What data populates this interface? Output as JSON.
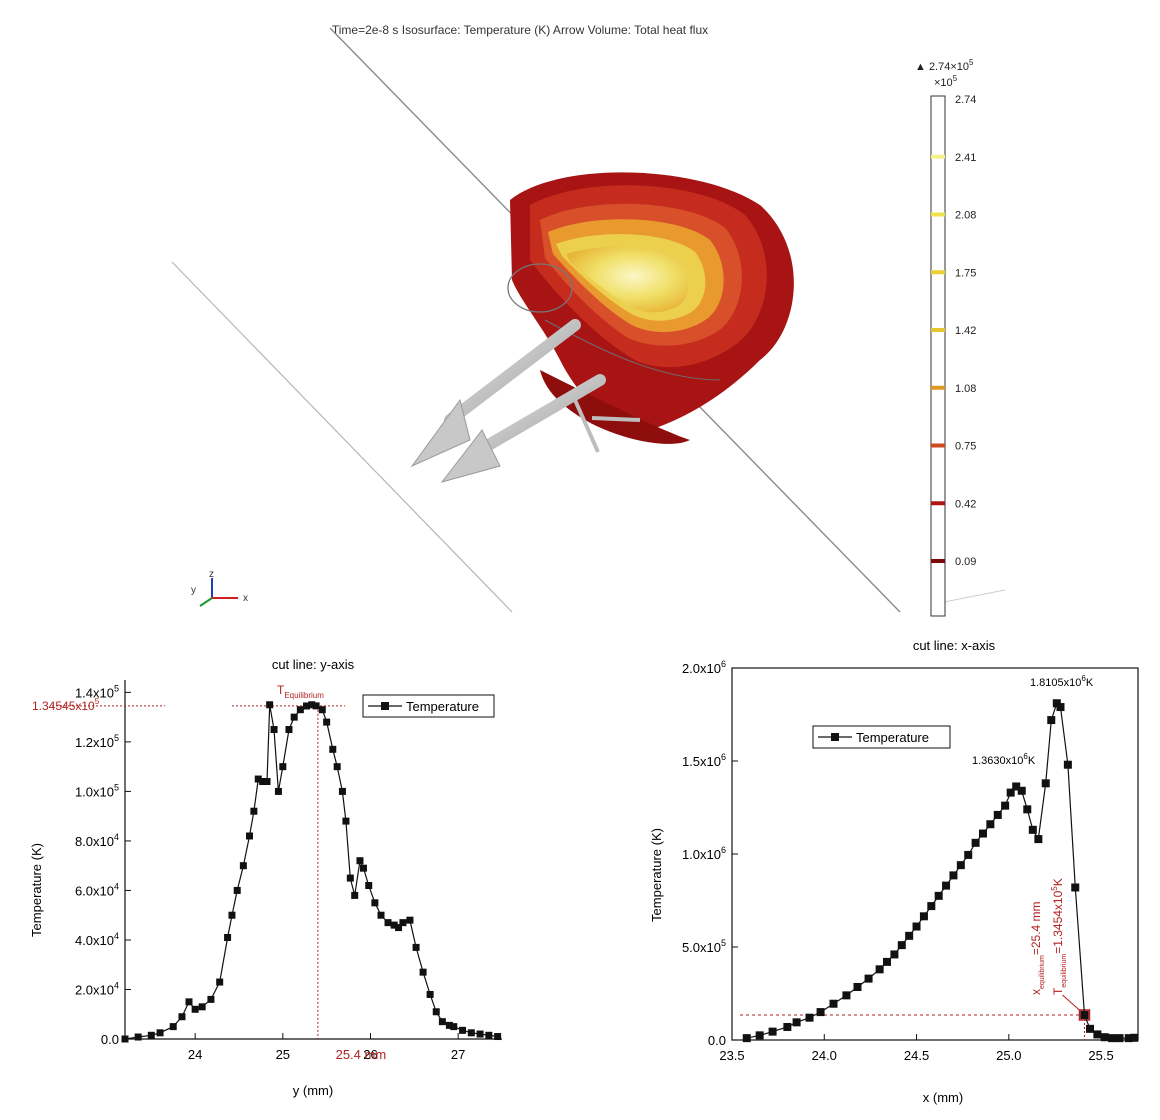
{
  "scene": {
    "header": "Time=2e-8 s   Isosurface: Temperature (K)  Arrow Volume: Total heat flux",
    "colorbar": {
      "max_label": "▲ 2.74×10",
      "max_exp": "5",
      "scale_label": "×10",
      "scale_exp": "5",
      "ticks": [
        "2.74",
        "2.41",
        "2.08",
        "1.75",
        "1.42",
        "1.08",
        "0.75",
        "0.42",
        "0.09"
      ],
      "tick_colors": [
        "#f7f7e8",
        "#f4f08a",
        "#f0e34a",
        "#ead236",
        "#e6c62e",
        "#e09a22",
        "#cf4a1e",
        "#b01515",
        "#7d0a0a"
      ]
    },
    "triad": {
      "y": "y",
      "z": "z",
      "x": "x"
    },
    "colors": {
      "outer": "#b01b1b",
      "mid": "#d9442a",
      "inner": "#f2d75c",
      "core": "#fbf7c6",
      "arrow": "#bdbdbd"
    }
  },
  "chart_data": [
    {
      "type": "line",
      "title": "cut line: y-axis",
      "xlabel": "y (mm)",
      "ylabel": "Temperature (K)",
      "xlim": [
        23.2,
        27.5
      ],
      "ylim": [
        0,
        145000
      ],
      "xticks": [
        "24",
        "25",
        "26",
        "27"
      ],
      "xtick_values": [
        24,
        25,
        26,
        27
      ],
      "ytick_values": [
        0,
        20000,
        40000,
        60000,
        80000,
        100000,
        120000,
        140000
      ],
      "ytick_mant": [
        "0.0",
        "2.0x10",
        "4.0x10",
        "6.0x10",
        "8.0x10",
        "1.0x10",
        "1.2x10",
        "1.4x10"
      ],
      "ytick_exp": [
        "",
        "4",
        "4",
        "4",
        "4",
        "5",
        "5",
        "5"
      ],
      "legend": "Temperature",
      "series": [
        {
          "name": "Temperature",
          "x": [
            23.2,
            23.35,
            23.5,
            23.6,
            23.75,
            23.85,
            23.93,
            24.0,
            24.08,
            24.18,
            24.28,
            24.37,
            24.42,
            24.48,
            24.55,
            24.62,
            24.67,
            24.72,
            24.77,
            24.82,
            24.85,
            24.9,
            24.95,
            25.0,
            25.07,
            25.13,
            25.2,
            25.27,
            25.33,
            25.38,
            25.45,
            25.5,
            25.57,
            25.62,
            25.68,
            25.72,
            25.77,
            25.82,
            25.88,
            25.92,
            25.98,
            26.05,
            26.12,
            26.2,
            26.27,
            26.32,
            26.37,
            26.45,
            26.52,
            26.6,
            26.68,
            26.75,
            26.82,
            26.9,
            26.95,
            27.05,
            27.15,
            27.25,
            27.35,
            27.45
          ],
          "y": [
            0,
            800,
            1500,
            2500,
            5000,
            9000,
            15000,
            12000,
            13000,
            16000,
            23000,
            41000,
            50000,
            60000,
            70000,
            82000,
            92000,
            105000,
            104000,
            104000,
            135000,
            125000,
            100000,
            110000,
            125000,
            130000,
            133000,
            134500,
            135000,
            134545,
            133000,
            128000,
            117000,
            110000,
            100000,
            88000,
            65000,
            58000,
            72000,
            69000,
            62000,
            55000,
            50000,
            47000,
            46000,
            45000,
            47000,
            48000,
            37000,
            27000,
            18000,
            11000,
            7000,
            5500,
            5000,
            3500,
            2500,
            2000,
            1500,
            1000
          ]
        }
      ],
      "annotations": {
        "t_label": "T",
        "t_sub": "Equilibrium",
        "y_value_text": "1.34545x10",
        "y_value_exp": "5",
        "y_value": 134545,
        "x_value_text": "25.4 mm",
        "x_value": 25.4
      }
    },
    {
      "type": "line",
      "title": "cut line: x-axis",
      "xlabel": "x (mm)",
      "ylabel": "Temperature (K)",
      "xlim": [
        23.5,
        25.7
      ],
      "ylim": [
        0,
        2000000
      ],
      "xticks": [
        "23.5",
        "24.0",
        "24.5",
        "25.0",
        "25.5"
      ],
      "xtick_values": [
        23.5,
        24.0,
        24.5,
        25.0,
        25.5
      ],
      "ytick_values": [
        0,
        500000,
        1000000,
        1500000,
        2000000
      ],
      "ytick_mant": [
        "0.0",
        "5.0x10",
        "1.0x10",
        "1.5x10",
        "2.0x10"
      ],
      "ytick_exp": [
        "",
        "5",
        "6",
        "6",
        "6"
      ],
      "legend": "Temperature",
      "series": [
        {
          "name": "Temperature",
          "x": [
            23.58,
            23.65,
            23.72,
            23.8,
            23.85,
            23.92,
            23.98,
            24.05,
            24.12,
            24.18,
            24.24,
            24.3,
            24.34,
            24.38,
            24.42,
            24.46,
            24.5,
            24.54,
            24.58,
            24.62,
            24.66,
            24.7,
            24.74,
            24.78,
            24.82,
            24.86,
            24.9,
            24.94,
            24.98,
            25.01,
            25.04,
            25.07,
            25.1,
            25.13,
            25.16,
            25.2,
            25.23,
            25.26,
            25.28,
            25.32,
            25.36,
            25.41,
            25.44,
            25.48,
            25.52,
            25.56,
            25.6,
            25.65,
            25.68
          ],
          "y": [
            10000,
            25000,
            45000,
            70000,
            95000,
            120000,
            150000,
            195000,
            240000,
            285000,
            330000,
            380000,
            420000,
            460000,
            510000,
            560000,
            610000,
            665000,
            720000,
            775000,
            830000,
            885000,
            940000,
            995000,
            1060000,
            1110000,
            1160000,
            1210000,
            1260000,
            1330000,
            1363000,
            1340000,
            1240000,
            1130000,
            1080000,
            1380000,
            1720000,
            1810500,
            1790000,
            1480000,
            820000,
            134545,
            60000,
            30000,
            15000,
            10000,
            10000,
            10000,
            12000
          ]
        }
      ],
      "annotations": {
        "peak1_text": "1.3630x10",
        "peak1_exp": "6",
        "peak1_unit": "K",
        "peak2_text": "1.8105x10",
        "peak2_exp": "6",
        "peak2_unit": "K",
        "x_eq_text": "x",
        "x_eq_sub": "equilibrium",
        "x_eq_value": "=25.4 mm",
        "t_eq_text": "T",
        "t_eq_sub": "equilibrium",
        "t_eq_value": "=1.3454x10",
        "t_eq_exp": "5",
        "t_eq_unit": "K",
        "eq_x": 25.41,
        "eq_y": 134545
      }
    }
  ]
}
